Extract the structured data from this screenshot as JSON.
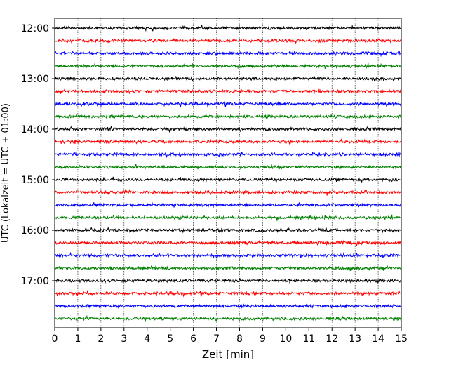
{
  "chart_data": {
    "type": "line",
    "title": "",
    "xlabel": "Zeit  [min]",
    "ylabel": "UTC (Lokalzeit = UTC + 01:00)",
    "xlim": [
      0,
      15
    ],
    "x_ticks": [
      "0",
      "1",
      "2",
      "3",
      "4",
      "5",
      "6",
      "7",
      "8",
      "9",
      "10",
      "11",
      "12",
      "13",
      "14",
      "15"
    ],
    "y_tick_labels": [
      "12:00",
      "13:00",
      "14:00",
      "15:00",
      "16:00",
      "17:00"
    ],
    "grid": "vertical dotted",
    "legend": "none",
    "series_colors": [
      "#000000",
      "#ff0000",
      "#0000ff",
      "#008000"
    ],
    "traces": [
      {
        "time": "12:00",
        "color": "#000000"
      },
      {
        "time": "12:15",
        "color": "#ff0000"
      },
      {
        "time": "12:30",
        "color": "#0000ff"
      },
      {
        "time": "12:45",
        "color": "#008000"
      },
      {
        "time": "13:00",
        "color": "#000000"
      },
      {
        "time": "13:15",
        "color": "#ff0000"
      },
      {
        "time": "13:30",
        "color": "#0000ff"
      },
      {
        "time": "13:45",
        "color": "#008000"
      },
      {
        "time": "14:00",
        "color": "#000000"
      },
      {
        "time": "14:15",
        "color": "#ff0000"
      },
      {
        "time": "14:30",
        "color": "#0000ff"
      },
      {
        "time": "14:45",
        "color": "#008000"
      },
      {
        "time": "15:00",
        "color": "#000000"
      },
      {
        "time": "15:15",
        "color": "#ff0000"
      },
      {
        "time": "15:30",
        "color": "#0000ff"
      },
      {
        "time": "15:45",
        "color": "#008000"
      },
      {
        "time": "16:00",
        "color": "#000000"
      },
      {
        "time": "16:15",
        "color": "#ff0000"
      },
      {
        "time": "16:30",
        "color": "#0000ff"
      },
      {
        "time": "16:45",
        "color": "#008000"
      },
      {
        "time": "17:00",
        "color": "#000000"
      },
      {
        "time": "17:15",
        "color": "#ff0000"
      },
      {
        "time": "17:30",
        "color": "#0000ff"
      },
      {
        "time": "17:45",
        "color": "#008000"
      }
    ]
  }
}
